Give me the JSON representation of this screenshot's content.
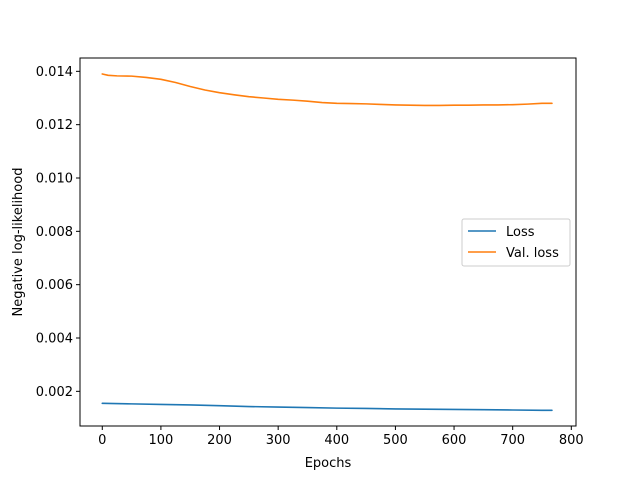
{
  "chart_data": {
    "type": "line",
    "title": "",
    "xlabel": "Epochs",
    "ylabel": "Negative log-likelihood",
    "xlim": [
      -38,
      808
    ],
    "ylim": [
      0.0007,
      0.0145
    ],
    "xticks": [
      0,
      100,
      200,
      300,
      400,
      500,
      600,
      700,
      800
    ],
    "xtick_labels": [
      "0",
      "100",
      "200",
      "300",
      "400",
      "500",
      "600",
      "700",
      "800"
    ],
    "yticks": [
      0.002,
      0.004,
      0.006,
      0.008,
      0.01,
      0.012,
      0.014
    ],
    "ytick_labels": [
      "0.002",
      "0.004",
      "0.006",
      "0.008",
      "0.010",
      "0.012",
      "0.014"
    ],
    "grid": false,
    "legend_position": "center-right",
    "series": [
      {
        "name": "Loss",
        "color": "#1f77b4",
        "x": [
          0,
          50,
          100,
          150,
          200,
          250,
          300,
          350,
          400,
          450,
          500,
          550,
          600,
          650,
          700,
          750,
          767
        ],
        "y": [
          0.00155,
          0.00153,
          0.00151,
          0.00149,
          0.00146,
          0.00143,
          0.00141,
          0.00139,
          0.00137,
          0.00136,
          0.00134,
          0.00133,
          0.00132,
          0.00131,
          0.0013,
          0.00129,
          0.00129
        ]
      },
      {
        "name": "Val. loss",
        "color": "#ff7f0e",
        "x": [
          0,
          10,
          25,
          50,
          75,
          100,
          125,
          150,
          175,
          200,
          225,
          250,
          275,
          300,
          325,
          350,
          375,
          400,
          425,
          450,
          475,
          500,
          525,
          550,
          575,
          600,
          625,
          650,
          675,
          700,
          725,
          750,
          767
        ],
        "y": [
          0.0139,
          0.01385,
          0.01383,
          0.01382,
          0.01377,
          0.0137,
          0.01358,
          0.01343,
          0.0133,
          0.0132,
          0.01312,
          0.01305,
          0.013,
          0.01295,
          0.01292,
          0.01288,
          0.01283,
          0.0128,
          0.01279,
          0.01278,
          0.01276,
          0.01274,
          0.01273,
          0.01272,
          0.01272,
          0.01273,
          0.01273,
          0.01274,
          0.01274,
          0.01275,
          0.01277,
          0.0128,
          0.0128
        ]
      }
    ]
  }
}
